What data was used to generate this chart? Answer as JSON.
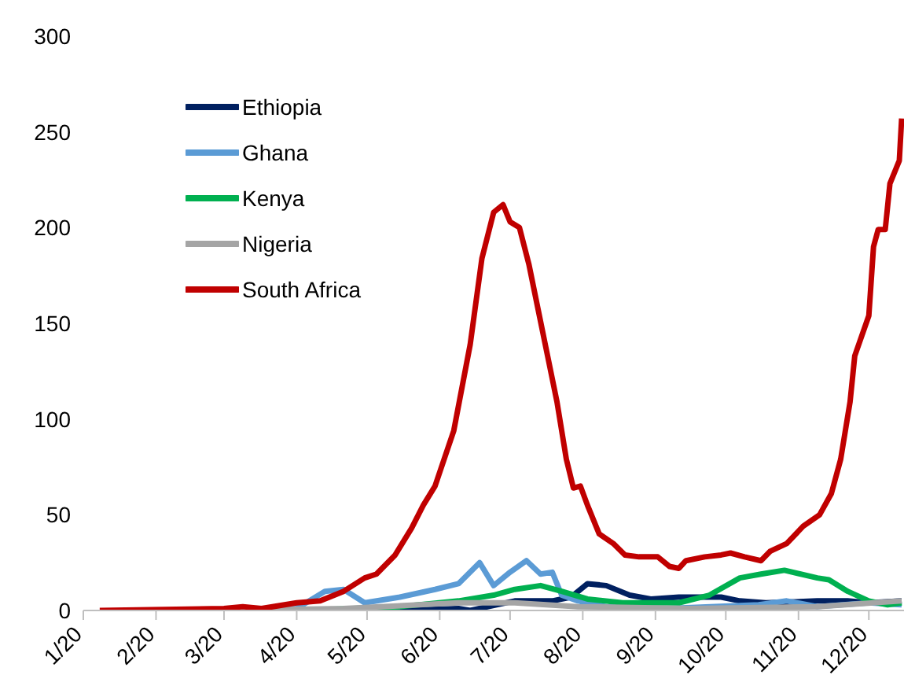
{
  "chart_data": {
    "type": "line",
    "xlim": [
      "2020-01-01",
      "2020-12-16"
    ],
    "xticks": [
      {
        "value": "2020-01-01",
        "label": "1/20"
      },
      {
        "value": "2020-02-01",
        "label": "2/20"
      },
      {
        "value": "2020-03-01",
        "label": "3/20"
      },
      {
        "value": "2020-04-01",
        "label": "4/20"
      },
      {
        "value": "2020-05-01",
        "label": "5/20"
      },
      {
        "value": "2020-06-01",
        "label": "6/20"
      },
      {
        "value": "2020-07-01",
        "label": "7/20"
      },
      {
        "value": "2020-08-01",
        "label": "8/20"
      },
      {
        "value": "2020-09-01",
        "label": "9/20"
      },
      {
        "value": "2020-10-01",
        "label": "10/20"
      },
      {
        "value": "2020-11-01",
        "label": "11/20"
      },
      {
        "value": "2020-12-01",
        "label": "12/20"
      }
    ],
    "ylim": [
      0,
      300
    ],
    "yticks": [
      0,
      50,
      100,
      150,
      200,
      250,
      300
    ],
    "grid": false,
    "legend": "top left",
    "marker": "none",
    "line_style": "solid",
    "series": [
      {
        "name": "Ethiopia",
        "color": "#002060",
        "x": [
          "2020-03-15",
          "2020-05-15",
          "2020-06-09",
          "2020-06-14",
          "2020-07-03",
          "2020-07-19",
          "2020-07-27",
          "2020-08-03",
          "2020-08-11",
          "2020-08-21",
          "2020-08-30",
          "2020-09-11",
          "2020-09-29",
          "2020-10-07",
          "2020-10-18",
          "2020-11-09",
          "2020-11-22",
          "2020-12-01",
          "2020-12-15"
        ],
        "values": [
          0,
          0,
          1,
          0,
          5,
          5,
          7,
          14,
          13,
          8,
          6,
          7,
          7,
          5,
          4,
          5,
          5,
          4,
          5
        ]
      },
      {
        "name": "Ghana",
        "color": "#5b9bd5",
        "x": [
          "2020-03-15",
          "2020-04-01",
          "2020-04-13",
          "2020-04-21",
          "2020-04-30",
          "2020-05-15",
          "2020-05-30",
          "2020-06-09",
          "2020-06-18",
          "2020-06-24",
          "2020-07-01",
          "2020-07-08",
          "2020-07-14",
          "2020-07-19",
          "2020-07-23",
          "2020-07-30",
          "2020-08-11",
          "2020-09-06",
          "2020-10-15",
          "2020-10-27",
          "2020-11-09",
          "2020-12-01",
          "2020-12-15"
        ],
        "values": [
          0,
          1,
          10,
          11,
          4,
          7,
          11,
          14,
          25,
          13,
          20,
          26,
          19,
          20,
          8,
          5,
          2,
          1,
          3,
          5,
          2,
          4,
          3
        ]
      },
      {
        "name": "Kenya",
        "color": "#00b050",
        "x": [
          "2020-03-15",
          "2020-04-03",
          "2020-05-15",
          "2020-06-09",
          "2020-06-24",
          "2020-07-03",
          "2020-07-14",
          "2020-07-23",
          "2020-08-03",
          "2020-08-18",
          "2020-09-11",
          "2020-09-24",
          "2020-10-07",
          "2020-10-16",
          "2020-10-26",
          "2020-11-09",
          "2020-11-14",
          "2020-11-22",
          "2020-12-01",
          "2020-12-09",
          "2020-12-15"
        ],
        "values": [
          0,
          0,
          2,
          5,
          8,
          11,
          13,
          10,
          6,
          4,
          4,
          8,
          17,
          19,
          21,
          17,
          16,
          10,
          5,
          3,
          4
        ]
      },
      {
        "name": "Nigeria",
        "color": "#a5a5a5",
        "x": [
          "2020-03-01",
          "2020-04-21",
          "2020-06-09",
          "2020-07-03",
          "2020-07-30",
          "2020-09-16",
          "2020-11-09",
          "2020-12-15"
        ],
        "values": [
          0,
          1,
          4,
          4,
          2,
          1,
          2,
          5
        ]
      },
      {
        "name": "South Africa",
        "color": "#c00000",
        "x": [
          "2020-01-08",
          "2020-03-01",
          "2020-03-09",
          "2020-03-17",
          "2020-04-01",
          "2020-04-11",
          "2020-04-21",
          "2020-04-30",
          "2020-05-05",
          "2020-05-13",
          "2020-05-20",
          "2020-05-25",
          "2020-05-30",
          "2020-06-07",
          "2020-06-14",
          "2020-06-19",
          "2020-06-24",
          "2020-06-28",
          "2020-07-01",
          "2020-07-05",
          "2020-07-09",
          "2020-07-13",
          "2020-07-17",
          "2020-07-21",
          "2020-07-25",
          "2020-07-28",
          "2020-07-31",
          "2020-08-03",
          "2020-08-08",
          "2020-08-14",
          "2020-08-19",
          "2020-08-25",
          "2020-09-02",
          "2020-09-07",
          "2020-09-11",
          "2020-09-14",
          "2020-09-22",
          "2020-09-29",
          "2020-10-03",
          "2020-10-09",
          "2020-10-16",
          "2020-10-20",
          "2020-10-27",
          "2020-11-03",
          "2020-11-10",
          "2020-11-15",
          "2020-11-19",
          "2020-11-23",
          "2020-11-25",
          "2020-12-01",
          "2020-12-03",
          "2020-12-05",
          "2020-12-08",
          "2020-12-10",
          "2020-12-14",
          "2020-12-15"
        ],
        "values": [
          0,
          1,
          2,
          1,
          4,
          5,
          10,
          17,
          19,
          29,
          43,
          55,
          65,
          94,
          139,
          184,
          208,
          212,
          203,
          200,
          181,
          157,
          133,
          109,
          79,
          64,
          65,
          55,
          40,
          35,
          29,
          28,
          28,
          23,
          22,
          26,
          28,
          29,
          30,
          28,
          26,
          31,
          35,
          44,
          50,
          61,
          79,
          109,
          133,
          154,
          190,
          199,
          199,
          223,
          235,
          257
        ]
      }
    ]
  }
}
